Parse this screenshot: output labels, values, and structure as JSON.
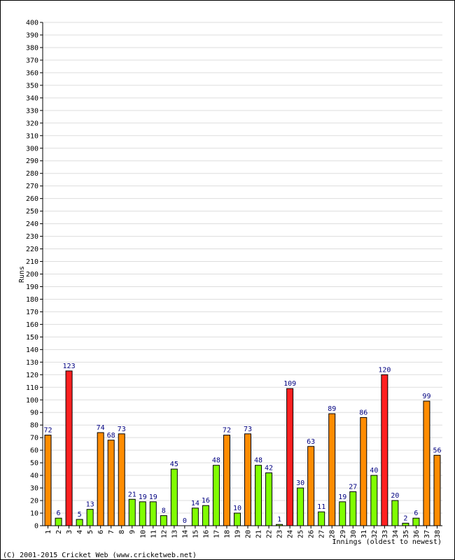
{
  "chart_data": {
    "type": "bar",
    "title": "",
    "xlabel": "Innings (oldest to newest)",
    "ylabel": "Runs",
    "ylim": [
      0,
      400
    ],
    "ytick_step": 10,
    "grid": true,
    "legend": "none",
    "categories": [
      "1",
      "2",
      "3",
      "4",
      "5",
      "6",
      "7",
      "8",
      "9",
      "10",
      "11",
      "12",
      "13",
      "14",
      "15",
      "16",
      "17",
      "18",
      "19",
      "20",
      "21",
      "22",
      "23",
      "24",
      "25",
      "26",
      "27",
      "28",
      "29",
      "30",
      "31",
      "32",
      "33",
      "34",
      "35",
      "36",
      "37",
      "38"
    ],
    "values": [
      72,
      6,
      123,
      5,
      13,
      74,
      68,
      73,
      21,
      19,
      19,
      8,
      45,
      0,
      14,
      16,
      48,
      72,
      10,
      73,
      48,
      42,
      1,
      109,
      30,
      63,
      11,
      89,
      19,
      27,
      86,
      40,
      120,
      20,
      2,
      6,
      99,
      56
    ],
    "colors": {
      "under_50": "#80ff00",
      "fifty": "#ff8c00",
      "hundred": "#ff2020",
      "label": "#000080"
    }
  },
  "copyright": "(C) 2001-2015 Cricket Web (www.cricketweb.net)"
}
